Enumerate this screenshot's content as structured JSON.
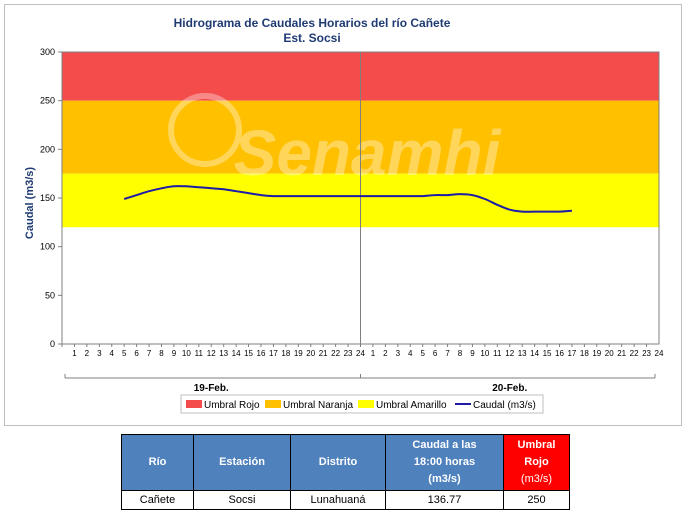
{
  "colors": {
    "rojo": "#f44b4b",
    "naranja": "#ffc000",
    "amarillo": "#ffff00",
    "caudal": "#1c1ca8",
    "header_blue": "#4f81bd",
    "header_red": "#ff0000"
  },
  "watermark": "Senamhi",
  "chart_data": {
    "type": "line",
    "title": "Hidrograma de Caudales Horarios del río Cañete",
    "subtitle": "Est. Socsi",
    "ylabel": "Caudal  (m3/s)",
    "xlabel": "",
    "ylim": [
      0,
      300
    ],
    "yticks": [
      0,
      50,
      100,
      150,
      200,
      250,
      300
    ],
    "x_hour_ticks": [
      1,
      2,
      3,
      4,
      5,
      6,
      7,
      8,
      9,
      10,
      11,
      12,
      13,
      14,
      15,
      16,
      17,
      18,
      19,
      20,
      21,
      22,
      23,
      24,
      1,
      2,
      3,
      4,
      5,
      6,
      7,
      8,
      9,
      10,
      11,
      12,
      13,
      14,
      15,
      16,
      17,
      18,
      19,
      20,
      21,
      22,
      23,
      24
    ],
    "day_labels": [
      "19-Feb.",
      "20-Feb."
    ],
    "bands": [
      {
        "name": "Umbral Rojo",
        "from": 250,
        "to": 300,
        "color": "#f44b4b"
      },
      {
        "name": "Umbral Naranja",
        "from": 175,
        "to": 250,
        "color": "#ffc000"
      },
      {
        "name": "Umbral Amarillo",
        "from": 120,
        "to": 175,
        "color": "#ffff00"
      }
    ],
    "series": [
      {
        "name": "Caudal (m3/s)",
        "color": "#1c1ca8",
        "x": [
          6,
          7,
          8,
          9,
          10,
          11,
          12,
          13,
          14,
          15,
          16,
          17,
          18,
          19,
          20,
          21,
          22,
          23,
          24,
          25,
          26,
          27,
          28,
          29,
          30,
          31,
          32,
          33,
          34,
          35,
          36,
          37,
          38,
          39,
          40,
          41,
          42
        ],
        "y": [
          149,
          153,
          157,
          160,
          162,
          162,
          161,
          160,
          159,
          157,
          155,
          153,
          152,
          152,
          152,
          152,
          152,
          152,
          152,
          152,
          152,
          152,
          152,
          152,
          152,
          153,
          153,
          154,
          153,
          149,
          143,
          138,
          136,
          136,
          136,
          136,
          137
        ]
      }
    ],
    "legend_position": "bottom",
    "grid": false
  },
  "table": {
    "headers": {
      "rio": "Río",
      "estacion": "Estación",
      "distrito": "Distrito",
      "caudal_line1": "Caudal a las",
      "caudal_line2": "18:00 horas",
      "caudal_line3": "(m3/s)",
      "umbral_line1": "Umbral",
      "umbral_line2": "Rojo",
      "umbral_line3": "(m3/s)"
    },
    "row": {
      "rio": "Cañete",
      "estacion": "Socsi",
      "distrito": "Lunahuaná",
      "caudal": "136.77",
      "umbral": "250"
    }
  }
}
